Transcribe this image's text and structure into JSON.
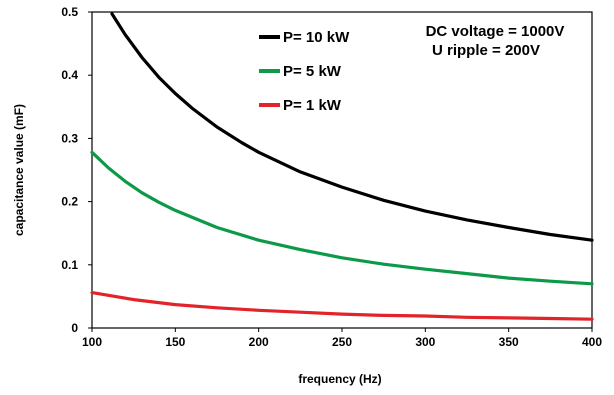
{
  "chart_data": {
    "type": "line",
    "title": "",
    "xlabel": "frequency (Hz)",
    "ylabel": "capacitance value (mF)",
    "xlim": [
      100,
      400
    ],
    "ylim": [
      0,
      0.5
    ],
    "x_ticks": [
      100,
      150,
      200,
      250,
      300,
      350,
      400
    ],
    "y_ticks": [
      0,
      0.1,
      0.2,
      0.3,
      0.4,
      0.5
    ],
    "y_tick_labels": [
      "0",
      "0.1",
      "0.2",
      "0.3",
      "0.4",
      "0.5"
    ],
    "grid": false,
    "legend_position": "top-center",
    "annotations": [
      "DC voltage = 1000V",
      "U ripple = 200V"
    ],
    "series": [
      {
        "name": "P= 10 kW",
        "color": "#000000",
        "x": [
          112,
          120,
          130,
          140,
          150,
          160,
          175,
          190,
          200,
          225,
          250,
          275,
          300,
          325,
          350,
          375,
          400
        ],
        "values": [
          0.497,
          0.464,
          0.428,
          0.397,
          0.371,
          0.348,
          0.318,
          0.293,
          0.278,
          0.247,
          0.223,
          0.202,
          0.185,
          0.171,
          0.159,
          0.148,
          0.139
        ]
      },
      {
        "name": "P= 5 kW",
        "color": "#0c9a48",
        "x": [
          100,
          110,
          120,
          130,
          140,
          150,
          175,
          200,
          225,
          250,
          275,
          300,
          325,
          350,
          375,
          400
        ],
        "values": [
          0.278,
          0.253,
          0.232,
          0.214,
          0.199,
          0.186,
          0.159,
          0.139,
          0.124,
          0.111,
          0.101,
          0.093,
          0.086,
          0.079,
          0.074,
          0.07
        ]
      },
      {
        "name": "P= 1 kW",
        "color": "#e2232a",
        "x": [
          100,
          125,
          150,
          175,
          200,
          225,
          250,
          275,
          300,
          325,
          350,
          375,
          400
        ],
        "values": [
          0.056,
          0.045,
          0.037,
          0.032,
          0.028,
          0.025,
          0.022,
          0.02,
          0.019,
          0.017,
          0.016,
          0.015,
          0.014
        ]
      }
    ]
  }
}
